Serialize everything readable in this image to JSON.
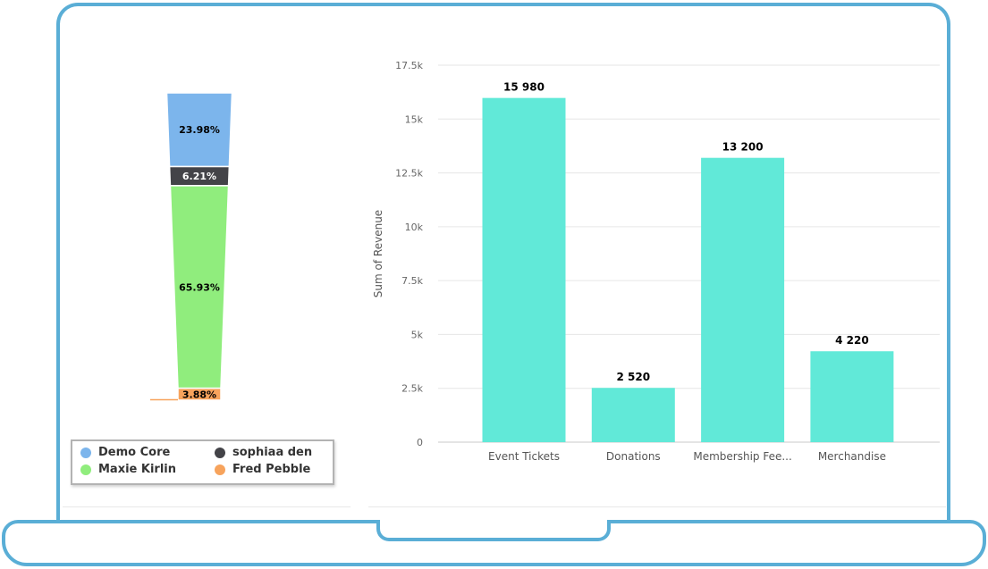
{
  "funnel_chart": {
    "segments": [
      {
        "name": "Demo Core",
        "percent": 23.98,
        "label": "23.98%",
        "color": "#7cb5ec"
      },
      {
        "name": "sophiaa den",
        "percent": 6.21,
        "label": "6.21%",
        "color": "#434348"
      },
      {
        "name": "Maxie Kirlin",
        "percent": 65.93,
        "label": "65.93%",
        "color": "#90ed7d"
      },
      {
        "name": "Fred Pebble",
        "percent": 3.88,
        "label": "3.88%",
        "color": "#f7a35c"
      }
    ],
    "legend": [
      {
        "label": "Demo Core",
        "color": "#7cb5ec"
      },
      {
        "label": "sophiaa den",
        "color": "#434348"
      },
      {
        "label": "Maxie Kirlin",
        "color": "#90ed7d"
      },
      {
        "label": "Fred Pebble",
        "color": "#f7a35c"
      }
    ]
  },
  "chart_data": [
    {
      "type": "funnel",
      "categories": [
        "Demo Core",
        "sophiaa den",
        "Maxie Kirlin",
        "Fred Pebble"
      ],
      "values": [
        23.98,
        6.21,
        65.93,
        3.88
      ],
      "data_labels": [
        "23.98%",
        "6.21%",
        "65.93%",
        "3.88%"
      ],
      "legend_placement": "bottom"
    },
    {
      "type": "bar",
      "categories": [
        "Event Tickets",
        "Donations",
        "Membership Fee...",
        "Merchandise"
      ],
      "values": [
        15980,
        2520,
        13200,
        4220
      ],
      "data_labels": [
        "15 980",
        "2 520",
        "13 200",
        "4 220"
      ],
      "ylabel": "Sum of Revenue",
      "ylim": [
        0,
        17500
      ],
      "yticks": [
        "0",
        "2.5k",
        "5k",
        "7.5k",
        "10k",
        "12.5k",
        "15k",
        "17.5k"
      ],
      "grid": true,
      "bar_color": "#61e9d8"
    }
  ]
}
